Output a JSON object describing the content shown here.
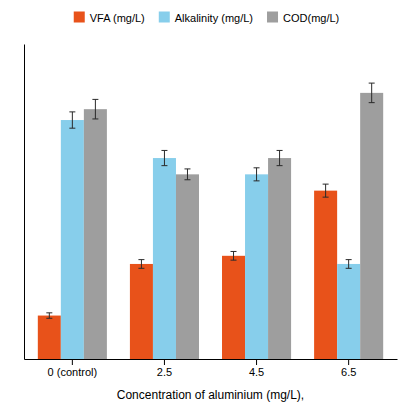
{
  "chart_data": {
    "type": "bar",
    "xlabel": "Concentration of aluminium (mg/L),",
    "categories": [
      "0 (control)",
      "2.5",
      "4.5",
      "6.5"
    ],
    "series": [
      {
        "name": "VFA (mg/L)",
        "color": "#E8521A",
        "values": [
          80,
          175,
          190,
          310
        ],
        "errors": [
          5,
          8,
          8,
          12
        ]
      },
      {
        "name": "Alkalinity (mg/L)",
        "color": "#87CEEB",
        "values": [
          440,
          370,
          340,
          175
        ],
        "errors": [
          15,
          14,
          12,
          8
        ]
      },
      {
        "name": "COD(mg/L)",
        "color": "#9E9E9E",
        "values": [
          460,
          340,
          370,
          490
        ],
        "errors": [
          18,
          10,
          14,
          18
        ]
      }
    ],
    "ylim": [
      0,
      580
    ],
    "yticks": [],
    "tick_labels": "x",
    "grid": false,
    "legend": "top"
  }
}
